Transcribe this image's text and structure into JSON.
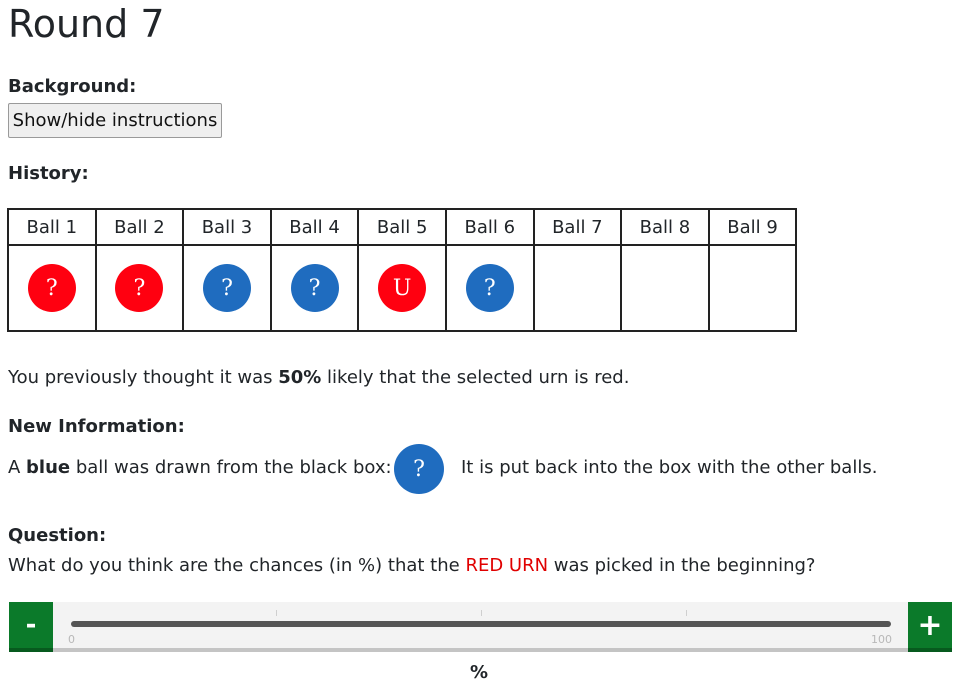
{
  "page": {
    "title": "Round 7"
  },
  "background": {
    "label": "Background:",
    "toggle_button": "Show/hide instructions"
  },
  "history": {
    "label": "History:",
    "columns": [
      "Ball 1",
      "Ball 2",
      "Ball 3",
      "Ball 4",
      "Ball 5",
      "Ball 6",
      "Ball 7",
      "Ball 8",
      "Ball 9"
    ],
    "balls": [
      {
        "color": "red",
        "hex": "#ff0010",
        "symbol": "?"
      },
      {
        "color": "red",
        "hex": "#ff0010",
        "symbol": "?"
      },
      {
        "color": "blue",
        "hex": "#1f6cbf",
        "symbol": "?"
      },
      {
        "color": "blue",
        "hex": "#1f6cbf",
        "symbol": "?"
      },
      {
        "color": "red",
        "hex": "#ff0010",
        "symbol": "U"
      },
      {
        "color": "blue",
        "hex": "#1f6cbf",
        "symbol": "?"
      },
      null,
      null,
      null
    ]
  },
  "previous": {
    "prefix": "You previously thought it was ",
    "value": "50%",
    "suffix": " likely that the selected urn is red."
  },
  "new_information": {
    "label": "New Information:",
    "prefix": "A ",
    "color_word": "blue",
    "middle": " ball was drawn from the black box:",
    "ball_symbol": "?",
    "after": "It is put back into the box with the other balls."
  },
  "question": {
    "label": "Question:",
    "prefix": "What do you think are the chances (in %) that the ",
    "highlight": "RED URN",
    "suffix": " was picked in the beginning?"
  },
  "slider": {
    "minus_label": "-",
    "plus_label": "+",
    "min_label": "0",
    "max_label": "100",
    "unit": "%"
  },
  "colors": {
    "red": "#ff0010",
    "blue": "#1f6cbf",
    "green_button": "#0b7a2a",
    "highlight_red": "#e00000"
  }
}
